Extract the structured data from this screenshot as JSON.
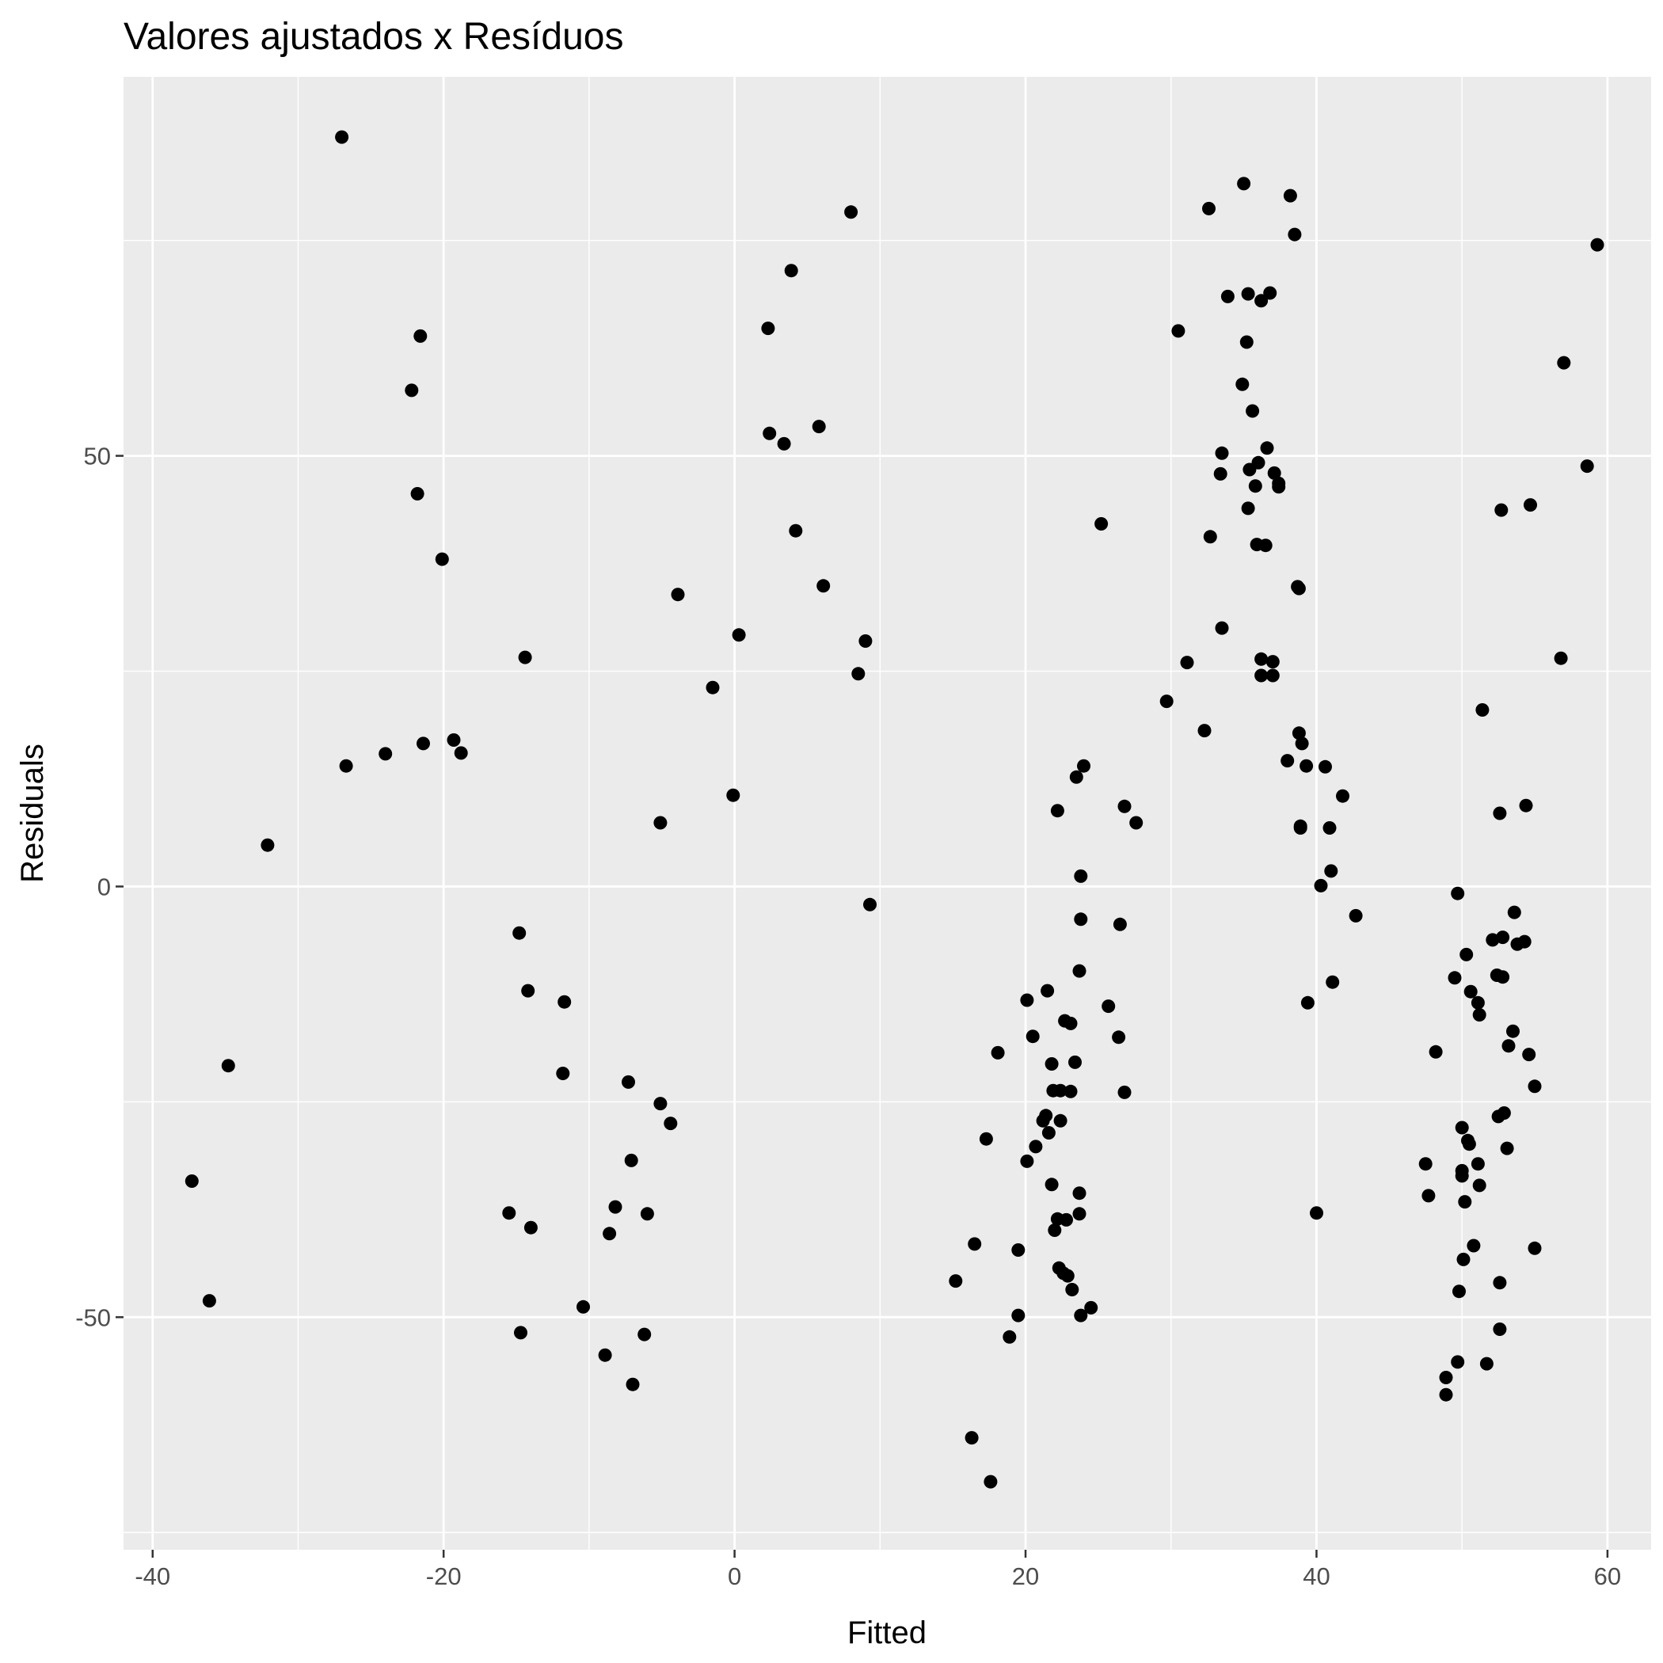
{
  "chart_data": {
    "type": "scatter",
    "title": "Valores ajustados x Resíduos",
    "xlabel": "Fitted",
    "ylabel": "Residuals",
    "xlim": [
      -42,
      63
    ],
    "ylim": [
      -77,
      94
    ],
    "x_ticks": [
      -40,
      -20,
      0,
      20,
      40,
      60
    ],
    "x_tick_labels": [
      "-40",
      "-20",
      "0",
      "20",
      "40",
      "60"
    ],
    "y_ticks": [
      -50,
      0,
      50
    ],
    "y_tick_labels": [
      "-50",
      "0",
      "50"
    ],
    "grid": true,
    "panel_color": "#ebebeb",
    "point_color": "#000000",
    "points": [
      [
        -27.0,
        87.0
      ],
      [
        -22.2,
        57.6
      ],
      [
        -21.6,
        63.9
      ],
      [
        -21.8,
        45.6
      ],
      [
        -20.1,
        38.0
      ],
      [
        -19.3,
        17.0
      ],
      [
        -18.8,
        15.5
      ],
      [
        -21.4,
        16.6
      ],
      [
        -24.0,
        15.4
      ],
      [
        -26.7,
        14.0
      ],
      [
        -32.1,
        4.8
      ],
      [
        -34.8,
        -20.8
      ],
      [
        -37.3,
        -34.2
      ],
      [
        -36.1,
        -48.1
      ],
      [
        -14.4,
        26.6
      ],
      [
        -14.8,
        -5.4
      ],
      [
        -14.2,
        -12.1
      ],
      [
        -11.7,
        -13.4
      ],
      [
        -11.8,
        -21.7
      ],
      [
        -15.5,
        -37.9
      ],
      [
        -14.0,
        -39.6
      ],
      [
        -14.7,
        -51.8
      ],
      [
        -10.4,
        -48.8
      ],
      [
        -8.9,
        -54.4
      ],
      [
        -7.3,
        -22.7
      ],
      [
        -7.1,
        -31.8
      ],
      [
        -8.2,
        -37.2
      ],
      [
        -8.6,
        -40.3
      ],
      [
        -6.0,
        -38.0
      ],
      [
        -6.2,
        -52.0
      ],
      [
        -7.0,
        -57.8
      ],
      [
        -5.1,
        -25.2
      ],
      [
        -4.4,
        -27.5
      ],
      [
        -3.9,
        33.9
      ],
      [
        -1.5,
        23.1
      ],
      [
        0.3,
        29.2
      ],
      [
        -0.1,
        10.6
      ],
      [
        -5.1,
        7.4
      ],
      [
        2.3,
        64.8
      ],
      [
        3.9,
        71.5
      ],
      [
        2.4,
        52.6
      ],
      [
        3.4,
        51.4
      ],
      [
        4.2,
        41.3
      ],
      [
        6.1,
        34.9
      ],
      [
        5.8,
        53.4
      ],
      [
        8.0,
        78.3
      ],
      [
        8.5,
        24.7
      ],
      [
        9.0,
        28.5
      ],
      [
        9.3,
        -2.1
      ],
      [
        15.2,
        -45.8
      ],
      [
        16.3,
        -64.0
      ],
      [
        16.5,
        -41.5
      ],
      [
        17.3,
        -29.3
      ],
      [
        17.6,
        -69.1
      ],
      [
        18.1,
        -19.3
      ],
      [
        19.5,
        -42.2
      ],
      [
        19.5,
        -49.8
      ],
      [
        18.9,
        -52.3
      ],
      [
        20.1,
        -13.2
      ],
      [
        20.1,
        -31.9
      ],
      [
        20.5,
        -17.4
      ],
      [
        20.7,
        -30.2
      ],
      [
        21.2,
        -27.2
      ],
      [
        21.4,
        -26.6
      ],
      [
        21.6,
        -28.6
      ],
      [
        21.5,
        -12.1
      ],
      [
        21.8,
        -20.6
      ],
      [
        21.9,
        -23.7
      ],
      [
        21.8,
        -34.6
      ],
      [
        22.0,
        -39.9
      ],
      [
        22.2,
        -38.6
      ],
      [
        22.4,
        -27.2
      ],
      [
        22.2,
        8.8
      ],
      [
        22.3,
        -44.3
      ],
      [
        22.4,
        -23.7
      ],
      [
        22.6,
        -44.9
      ],
      [
        22.7,
        -15.6
      ],
      [
        22.9,
        -45.2
      ],
      [
        22.8,
        -38.7
      ],
      [
        23.1,
        -23.8
      ],
      [
        23.1,
        -15.9
      ],
      [
        23.2,
        -46.8
      ],
      [
        23.4,
        -20.4
      ],
      [
        23.5,
        12.7
      ],
      [
        23.7,
        -35.6
      ],
      [
        23.7,
        -38.0
      ],
      [
        23.8,
        -49.8
      ],
      [
        23.8,
        -3.8
      ],
      [
        23.7,
        -9.8
      ],
      [
        23.8,
        1.2
      ],
      [
        24.0,
        14.0
      ],
      [
        24.5,
        -48.9
      ],
      [
        25.2,
        42.1
      ],
      [
        25.7,
        -13.9
      ],
      [
        26.4,
        -17.5
      ],
      [
        26.5,
        -4.4
      ],
      [
        26.8,
        9.3
      ],
      [
        26.8,
        -23.9
      ],
      [
        27.6,
        7.4
      ],
      [
        29.7,
        21.5
      ],
      [
        30.5,
        64.5
      ],
      [
        31.1,
        26.0
      ],
      [
        32.3,
        18.1
      ],
      [
        32.6,
        78.7
      ],
      [
        32.7,
        40.6
      ],
      [
        33.5,
        30.0
      ],
      [
        33.4,
        47.9
      ],
      [
        33.5,
        50.3
      ],
      [
        33.9,
        68.5
      ],
      [
        35.0,
        81.6
      ],
      [
        35.3,
        68.8
      ],
      [
        35.2,
        63.2
      ],
      [
        35.3,
        43.9
      ],
      [
        35.4,
        48.4
      ],
      [
        35.6,
        55.2
      ],
      [
        34.9,
        58.3
      ],
      [
        35.8,
        46.5
      ],
      [
        36.0,
        49.2
      ],
      [
        35.9,
        39.7
      ],
      [
        36.2,
        68.0
      ],
      [
        36.2,
        26.4
      ],
      [
        36.2,
        24.5
      ],
      [
        36.5,
        39.6
      ],
      [
        36.6,
        50.9
      ],
      [
        36.8,
        68.9
      ],
      [
        37.1,
        48.0
      ],
      [
        37.0,
        26.1
      ],
      [
        37.0,
        24.5
      ],
      [
        37.4,
        46.8
      ],
      [
        37.4,
        46.4
      ],
      [
        38.0,
        14.6
      ],
      [
        38.2,
        80.2
      ],
      [
        38.5,
        75.7
      ],
      [
        38.7,
        34.8
      ],
      [
        38.8,
        34.6
      ],
      [
        38.8,
        17.8
      ],
      [
        39.0,
        16.6
      ],
      [
        38.9,
        7.0
      ],
      [
        38.9,
        6.8
      ],
      [
        39.3,
        14.0
      ],
      [
        39.4,
        -13.5
      ],
      [
        40.0,
        -37.9
      ],
      [
        40.3,
        0.1
      ],
      [
        40.6,
        13.9
      ],
      [
        40.9,
        6.8
      ],
      [
        41.0,
        1.8
      ],
      [
        41.1,
        -11.1
      ],
      [
        41.8,
        10.5
      ],
      [
        42.7,
        -3.4
      ],
      [
        47.5,
        -32.2
      ],
      [
        47.7,
        -35.9
      ],
      [
        48.2,
        -19.2
      ],
      [
        49.5,
        -10.6
      ],
      [
        49.7,
        -0.8
      ],
      [
        49.7,
        -55.2
      ],
      [
        49.8,
        -47.0
      ],
      [
        48.9,
        -57.0
      ],
      [
        48.9,
        -59.0
      ],
      [
        50.0,
        -28.0
      ],
      [
        50.0,
        -33.0
      ],
      [
        50.0,
        -33.6
      ],
      [
        50.1,
        -43.3
      ],
      [
        50.2,
        -36.6
      ],
      [
        50.3,
        -7.9
      ],
      [
        50.4,
        -29.5
      ],
      [
        50.5,
        -29.9
      ],
      [
        50.6,
        -12.2
      ],
      [
        50.8,
        -41.7
      ],
      [
        51.1,
        -13.5
      ],
      [
        51.1,
        -32.2
      ],
      [
        51.2,
        -14.9
      ],
      [
        51.2,
        -34.7
      ],
      [
        51.4,
        20.5
      ],
      [
        51.7,
        -55.4
      ],
      [
        52.1,
        -6.2
      ],
      [
        52.4,
        -10.3
      ],
      [
        52.6,
        8.5
      ],
      [
        52.5,
        -26.7
      ],
      [
        52.6,
        -46.0
      ],
      [
        52.6,
        -51.4
      ],
      [
        52.7,
        43.7
      ],
      [
        52.8,
        -10.5
      ],
      [
        52.8,
        -5.9
      ],
      [
        52.9,
        -26.3
      ],
      [
        53.1,
        -30.4
      ],
      [
        53.2,
        -18.5
      ],
      [
        53.5,
        -16.8
      ],
      [
        53.6,
        -3.0
      ],
      [
        53.8,
        -6.7
      ],
      [
        54.3,
        -6.4
      ],
      [
        54.4,
        9.4
      ],
      [
        54.6,
        -19.5
      ],
      [
        54.7,
        44.3
      ],
      [
        55.0,
        -23.2
      ],
      [
        55.0,
        -42.0
      ],
      [
        56.8,
        26.5
      ],
      [
        57.0,
        60.8
      ],
      [
        58.6,
        48.8
      ],
      [
        59.3,
        74.5
      ]
    ]
  }
}
